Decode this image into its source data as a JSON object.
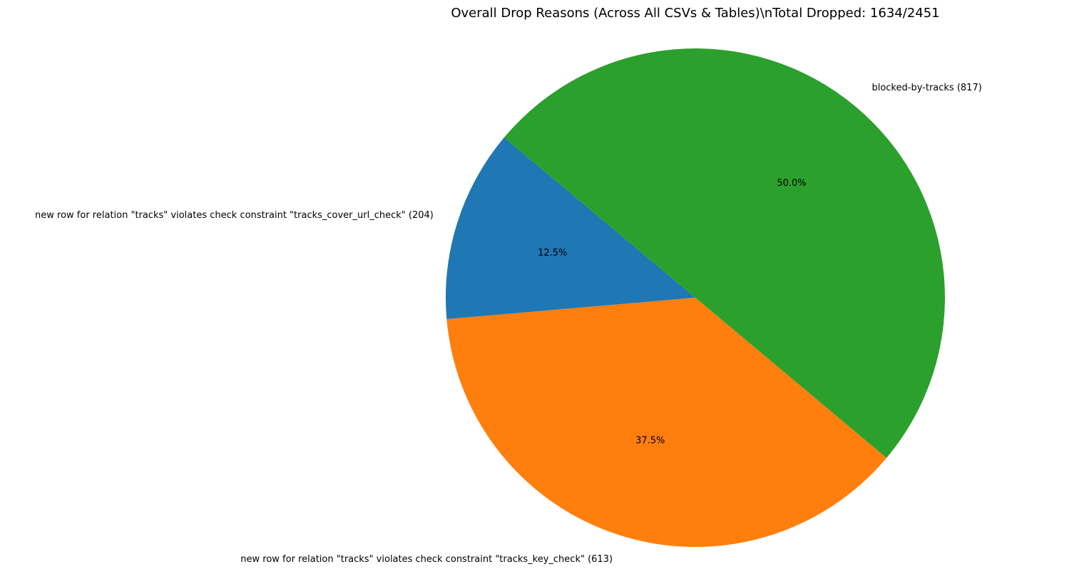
{
  "chart_data": {
    "type": "pie",
    "title": "Overall Drop Reasons (Across All CSVs & Tables)\\nTotal Dropped: 1634/2451",
    "slices": [
      {
        "label": "new row for relation \"tracks\" violates check constraint \"tracks_cover_url_check\" (204)",
        "value": 204,
        "percent_label": "12.5%",
        "color": "#1f77b4"
      },
      {
        "label": "new row for relation \"tracks\" violates check constraint \"tracks_key_check\" (613)",
        "value": 613,
        "percent_label": "37.5%",
        "color": "#ff7f0e"
      },
      {
        "label": "blocked-by-tracks (817)",
        "value": 817,
        "percent_label": "50.0%",
        "color": "#2ca02c"
      }
    ],
    "start_angle_deg": 140,
    "direction": "counterclockwise"
  }
}
